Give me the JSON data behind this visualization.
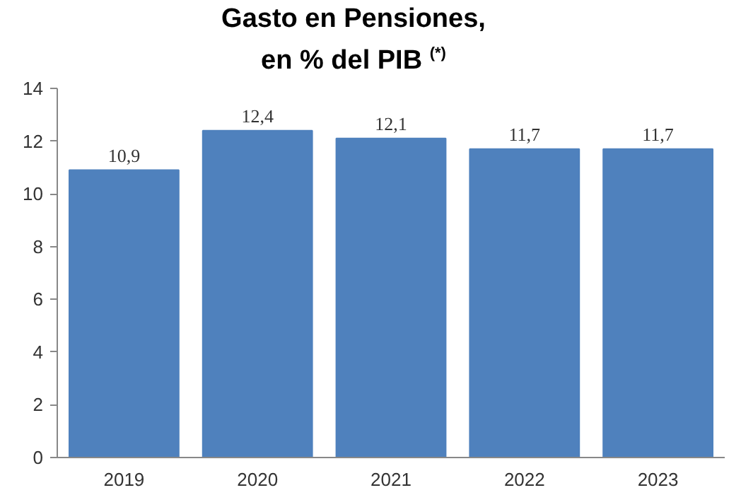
{
  "chart_data": {
    "type": "bar",
    "title": "Gasto en Pensiones,\nen % del PIB $^{(*)}$",
    "categories": [
      "2019",
      "2020",
      "2021",
      "2022",
      "2023"
    ],
    "values": [
      10.9,
      12.4,
      12.1,
      11.7,
      11.7
    ],
    "value_labels": [
      "10,9",
      "12,4",
      "12,1",
      "11,7",
      "11,7"
    ],
    "color": "#4f81bd",
    "ylim": [
      0,
      14
    ],
    "yticks": [
      0,
      2,
      4,
      6,
      8,
      10,
      12,
      14
    ],
    "grid": false
  }
}
